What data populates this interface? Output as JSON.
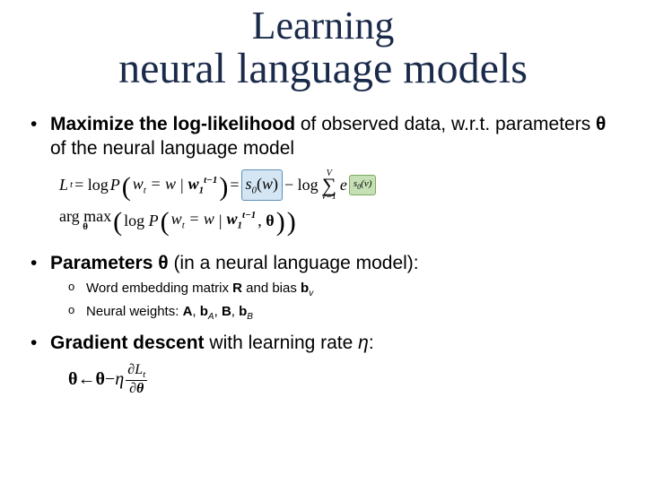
{
  "title": {
    "line1": "Learning",
    "line2": "neural language models"
  },
  "bullet1": {
    "prefix": "Maximize the log-likelihood",
    "mid": " of observed data, w.r.t. parameters ",
    "theta": "θ",
    "suffix": " of the neural language model"
  },
  "eq1": {
    "lhs_L": "L",
    "lhs_t": "t",
    "eq": " = log ",
    "P": "P",
    "w": "w",
    "one": "1",
    "tminus": "t−1",
    "s0": "s",
    "zero": "0",
    "minus_log": " − log",
    "V": "V",
    "v1": "v=1",
    "e": "e",
    "sv": "s",
    "v": "v"
  },
  "eq2": {
    "argmax": "arg max",
    "theta": "θ",
    "zero": "0"
  },
  "bullet2": {
    "prefix": "Parameters θ",
    "suffix": " (in a neural language model):"
  },
  "sub_bullets": {
    "a_prefix": "Word embedding matrix ",
    "R": "R",
    "a_mid": " and bias ",
    "bv": "b",
    "bv_sub": "v",
    "b_prefix": "Neural weights: ",
    "A": "A",
    "bA": "b",
    "bA_sub": "A",
    "B": "B",
    "bB": "b",
    "bB_sub": "B"
  },
  "bullet3": {
    "prefix": "Gradient descent",
    "mid": " with learning rate ",
    "eta": "η",
    "suffix": ":"
  },
  "eq3": {
    "theta": "θ",
    "arrow": " ← ",
    "minus": " − ",
    "eta": "η",
    "partial": "∂",
    "L": "L",
    "t": "t"
  },
  "colors": {
    "title": "#1a2a4a",
    "highlight_blue_bg": "#d4e6f4",
    "highlight_blue_border": "#5a8fb8",
    "highlight_green_bg": "#c5e0b4",
    "highlight_green_border": "#7fa85f"
  },
  "fonts": {
    "title_family": "Garamond/Georgia serif",
    "body_family": "Arial",
    "math_family": "Times New Roman",
    "title_size_pt": 36,
    "body_size_pt": 16,
    "sub_bullet_size_pt": 11
  }
}
